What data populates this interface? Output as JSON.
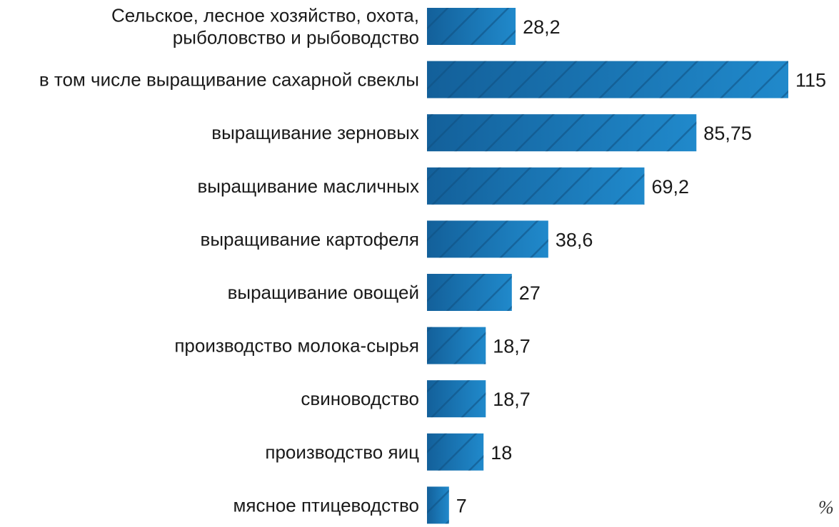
{
  "chart_data": {
    "type": "bar",
    "orientation": "horizontal",
    "categories": [
      [
        "Сельское, лесное хозяйство, охота,",
        "рыболовство и рыбоводство"
      ],
      [
        "в том числе выращивание сахарной свеклы"
      ],
      [
        "выращивание зерновых"
      ],
      [
        "выращивание масличных"
      ],
      [
        "выращивание картофеля"
      ],
      [
        "выращивание овощей"
      ],
      [
        "производство молока-сырья"
      ],
      [
        "свиноводство"
      ],
      [
        "производство яиц"
      ],
      [
        "мясное птицеводство"
      ]
    ],
    "values": [
      28.2,
      115,
      85.75,
      69.2,
      38.6,
      27,
      18.7,
      18.7,
      18,
      7
    ],
    "value_labels": [
      "28,2",
      "115",
      "85,75",
      "69,2",
      "38,6",
      "27",
      "18,7",
      "18,7",
      "18",
      "7"
    ],
    "unit": "%",
    "xlim": [
      0,
      115
    ],
    "grid": false,
    "colors": {
      "bar_dark": "#13609a",
      "bar_light": "#2089cb",
      "hatch": "#0f4f80"
    }
  }
}
